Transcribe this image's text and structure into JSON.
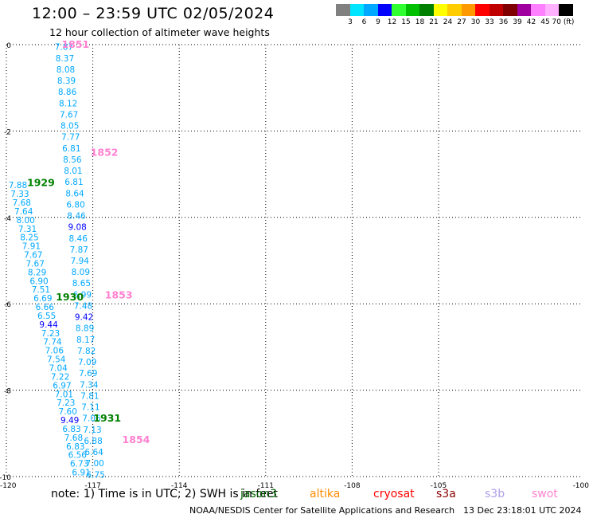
{
  "header": {
    "title": "12:00 – 23:59 UTC 02/05/2024",
    "subtitle": "12 hour collection of altimeter wave heights"
  },
  "color_scale": {
    "labels": [
      "3",
      "6",
      "9",
      "12",
      "15",
      "18",
      "21",
      "24",
      "27",
      "30",
      "33",
      "36",
      "39",
      "42",
      "45",
      "70 (ft)"
    ],
    "colors": [
      "#808080",
      "#00e5ff",
      "#00a8ff",
      "#0000ff",
      "#30ff30",
      "#00c000",
      "#008000",
      "#ffff00",
      "#ffcc00",
      "#ff9900",
      "#ff0000",
      "#c00000",
      "#800000",
      "#a000a0",
      "#ff80ff",
      "#ffb0ff",
      "#000000"
    ]
  },
  "note": {
    "text": "note: 1) Time is in UTC; 2) SWH is in feet"
  },
  "satellites": [
    {
      "name": "jason3",
      "color": "#006400"
    },
    {
      "name": "altika",
      "color": "#ff8c00"
    },
    {
      "name": "cryosat",
      "color": "#ff0000"
    },
    {
      "name": "s3a",
      "color": "#8b0000"
    },
    {
      "name": "s3b",
      "color": "#b09ee8"
    },
    {
      "name": "swot",
      "color": "#ff80d0"
    }
  ],
  "footer": {
    "credit": "NOAA/NESDIS Center for Satellite Applications and Research",
    "timestamp": "13 Dec 23:18:01 UTC 2024"
  },
  "chart_data": {
    "type": "scatter",
    "xlim": [
      -120,
      -100
    ],
    "ylim": [
      -10,
      0
    ],
    "x_ticks": [
      -120,
      -117,
      -114,
      -111,
      -108,
      -105
    ],
    "y_ticks": [
      0,
      -2,
      -4,
      -6,
      -8,
      -10
    ],
    "grid": true,
    "track_a": {
      "x_start": -118.0,
      "x_end": -116.9,
      "y_start": -0.05,
      "y_end": -9.95,
      "values": [
        "7.87",
        "8.37",
        "8.08",
        "8.39",
        "8.86",
        "8.12",
        "7.67",
        "8.05",
        "7.77",
        "6.81",
        "8.56",
        "8.01",
        "6.81",
        "8.64",
        "6.80",
        "8.46",
        "9.08",
        "8.46",
        "7.87",
        "7.94",
        "8.09",
        "8.65",
        "6.99",
        "7.48",
        "9.42",
        "8.89",
        "8.17",
        "7.82",
        "7.09",
        "7.69",
        "7.34",
        "7.81",
        "7.11",
        "7.06",
        "7.13",
        "6.88",
        "6.64",
        "7.00",
        "6.75"
      ],
      "colors": [
        "#00a8ff",
        "#00a8ff",
        "#00a8ff",
        "#00a8ff",
        "#00a8ff",
        "#00a8ff",
        "#00a8ff",
        "#00a8ff",
        "#00a8ff",
        "#00a8ff",
        "#00a8ff",
        "#00a8ff",
        "#00a8ff",
        "#00a8ff",
        "#00a8ff",
        "#00a8ff",
        "#0000ff",
        "#00a8ff",
        "#00a8ff",
        "#00a8ff",
        "#00a8ff",
        "#00a8ff",
        "#00a8ff",
        "#00a8ff",
        "#0000ff",
        "#00a8ff",
        "#00a8ff",
        "#00a8ff",
        "#00a8ff",
        "#00a8ff",
        "#00a8ff",
        "#00a8ff",
        "#00a8ff",
        "#00a8ff",
        "#00a8ff",
        "#00a8ff",
        "#00a8ff",
        "#00a8ff",
        "#00a8ff"
      ]
    },
    "track_b": {
      "x_start": -119.6,
      "x_end": -117.4,
      "y_start": -3.25,
      "y_end": -9.9,
      "values": [
        "7.88",
        "7.33",
        "7.68",
        "7.64",
        "8.00",
        "7.31",
        "8.25",
        "7.91",
        "7.67",
        "7.67",
        "8.29",
        "6.90",
        "7.51",
        "6.69",
        "6.66",
        "6.55",
        "9.44",
        "7.23",
        "7.74",
        "7.06",
        "7.54",
        "7.04",
        "7.22",
        "6.97",
        "7.01",
        "7.23",
        "7.60",
        "9.49",
        "6.83",
        "7.68",
        "6.83",
        "6.56",
        "6.73",
        "6.91"
      ],
      "colors": [
        "#00a8ff",
        "#00a8ff",
        "#00a8ff",
        "#00a8ff",
        "#00a8ff",
        "#00a8ff",
        "#00a8ff",
        "#00a8ff",
        "#00a8ff",
        "#00a8ff",
        "#00a8ff",
        "#00a8ff",
        "#00a8ff",
        "#00a8ff",
        "#00a8ff",
        "#00a8ff",
        "#0000ff",
        "#00a8ff",
        "#00a8ff",
        "#00a8ff",
        "#00a8ff",
        "#00a8ff",
        "#00a8ff",
        "#00a8ff",
        "#00a8ff",
        "#00a8ff",
        "#00a8ff",
        "#0000ff",
        "#00a8ff",
        "#00a8ff",
        "#00a8ff",
        "#00a8ff",
        "#00a8ff",
        "#00a8ff"
      ]
    },
    "time_labels": [
      {
        "text": "1851",
        "x": -117.6,
        "y": 0.0,
        "color": "#ff80d0"
      },
      {
        "text": "1852",
        "x": -116.6,
        "y": -2.5,
        "color": "#ff80d0"
      },
      {
        "text": "1853",
        "x": -116.1,
        "y": -5.8,
        "color": "#ff80d0"
      },
      {
        "text": "1854",
        "x": -115.5,
        "y": -9.15,
        "color": "#ff80d0"
      },
      {
        "text": "1929",
        "x": -118.8,
        "y": -3.2,
        "color": "#008000"
      },
      {
        "text": "1930",
        "x": -117.8,
        "y": -5.85,
        "color": "#008000"
      },
      {
        "text": "1931",
        "x": -116.5,
        "y": -8.65,
        "color": "#008000"
      }
    ]
  }
}
